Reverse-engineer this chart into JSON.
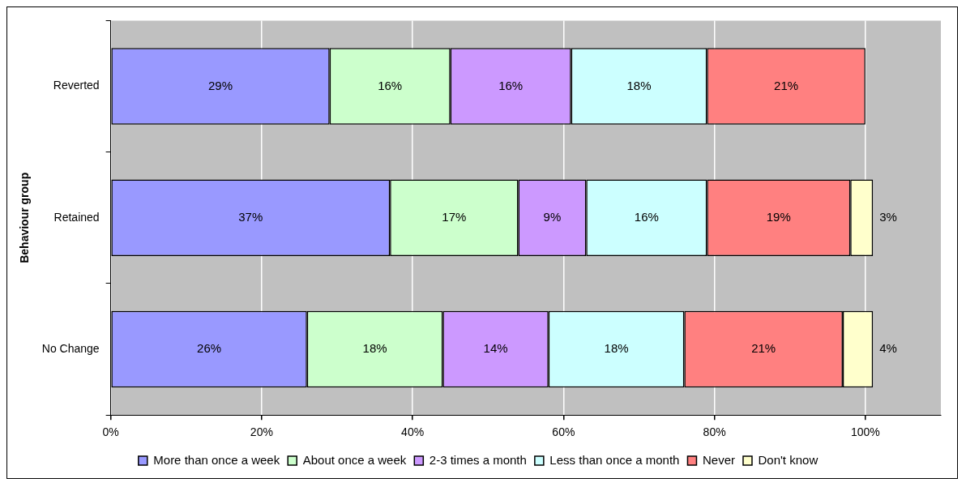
{
  "chart_data": {
    "type": "bar",
    "orientation": "horizontal",
    "stacked": true,
    "ylabel": "Behaviour group",
    "categories": [
      "Reverted",
      "Retained",
      "No Change"
    ],
    "xlim": [
      0,
      110
    ],
    "xticks": [
      {
        "value": 0,
        "label": "0%"
      },
      {
        "value": 20,
        "label": "20%"
      },
      {
        "value": 40,
        "label": "40%"
      },
      {
        "value": 60,
        "label": "60%"
      },
      {
        "value": 80,
        "label": "80%"
      },
      {
        "value": 100,
        "label": "100%"
      }
    ],
    "grid": "x",
    "legend": "bottom",
    "series": [
      {
        "name": "More than once a week",
        "color": "#9999ff",
        "values": [
          29,
          37,
          26
        ],
        "value_labels": [
          "29%",
          "37%",
          "26%"
        ]
      },
      {
        "name": "About once a week",
        "color": "#ccffcc",
        "values": [
          16,
          17,
          18
        ],
        "value_labels": [
          "16%",
          "17%",
          "18%"
        ]
      },
      {
        "name": "2-3 times a month",
        "color": "#cc99ff",
        "values": [
          16,
          9,
          14
        ],
        "value_labels": [
          "16%",
          "9%",
          "14%"
        ]
      },
      {
        "name": "Less than once a month",
        "color": "#ccffff",
        "values": [
          18,
          16,
          18
        ],
        "value_labels": [
          "18%",
          "16%",
          "18%"
        ]
      },
      {
        "name": "Never",
        "color": "#ff8080",
        "values": [
          21,
          19,
          21
        ],
        "value_labels": [
          "21%",
          "19%",
          "21%"
        ]
      },
      {
        "name": "Don't know",
        "color": "#ffffcc",
        "values": [
          null,
          3,
          4
        ],
        "value_labels": [
          null,
          "3%",
          "4%"
        ]
      }
    ]
  }
}
